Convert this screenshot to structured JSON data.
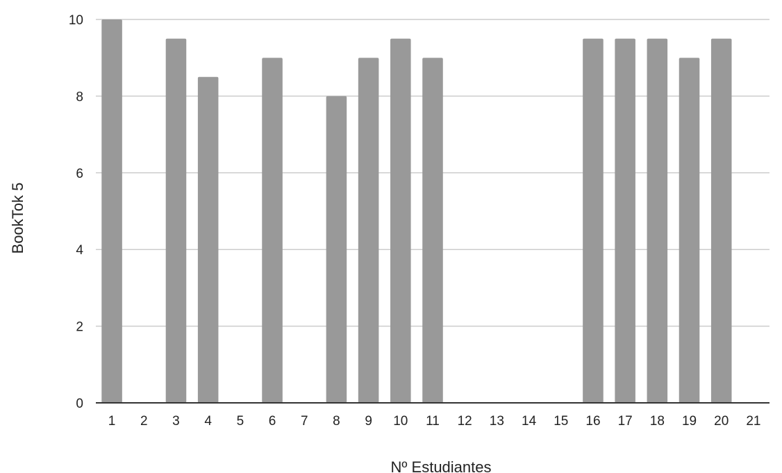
{
  "chart_data": {
    "type": "bar",
    "title": "",
    "xlabel": "Nº Estudiantes",
    "ylabel": "BookTok 5",
    "categories": [
      "1",
      "2",
      "3",
      "4",
      "5",
      "6",
      "7",
      "8",
      "9",
      "10",
      "11",
      "12",
      "13",
      "14",
      "15",
      "16",
      "17",
      "18",
      "19",
      "20",
      "21"
    ],
    "values": [
      10,
      0,
      9.5,
      8.5,
      0,
      9,
      0,
      8,
      9,
      9.5,
      9,
      0,
      0,
      0,
      0,
      9.5,
      9.5,
      9.5,
      9,
      9.5,
      0
    ],
    "ylim": [
      0,
      10
    ],
    "yticks": [
      "0",
      "2",
      "4",
      "6",
      "8",
      "10"
    ],
    "grid": true,
    "legend": "none",
    "colors": {
      "bar": "#999999",
      "grid": "#cccccc",
      "axis": "#333333"
    }
  }
}
